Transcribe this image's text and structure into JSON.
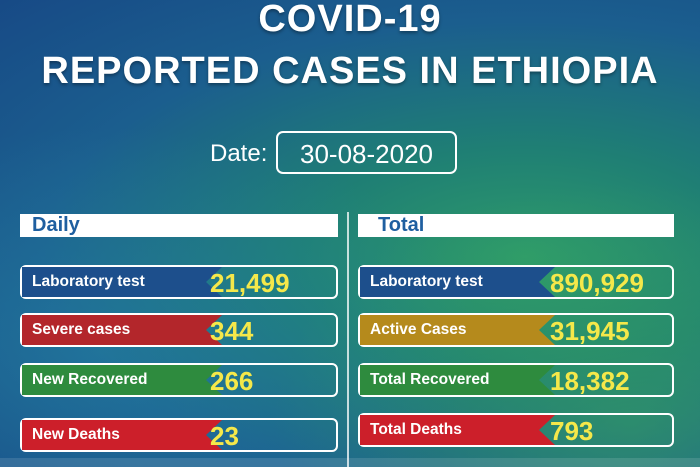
{
  "title_line1": "COVID-19",
  "title_line2": "REPORTED CASES IN ETHIOPIA",
  "date_label": "Date:",
  "date_value": "30-08-2020",
  "daily": {
    "header": "Daily",
    "items": [
      {
        "label": "Laboratory test",
        "value": "21,499",
        "color": "#1d4f8c"
      },
      {
        "label": "Severe cases",
        "value": "344",
        "color": "#b3262b"
      },
      {
        "label": "New Recovered",
        "value": "266",
        "color": "#2e8b3e"
      },
      {
        "label": "New Deaths",
        "value": "23",
        "color": "#cc1f2a"
      }
    ]
  },
  "total": {
    "header": "Total",
    "items": [
      {
        "label": "Laboratory test",
        "value": "890,929",
        "color": "#1d4f8c"
      },
      {
        "label": "Active Cases",
        "value": "31,945",
        "color": "#b58a1c"
      },
      {
        "label": "Total Recovered",
        "value": "18,382",
        "color": "#2e8b3e"
      },
      {
        "label": "Total Deaths",
        "value": "793",
        "color": "#cc1f2a"
      }
    ]
  }
}
